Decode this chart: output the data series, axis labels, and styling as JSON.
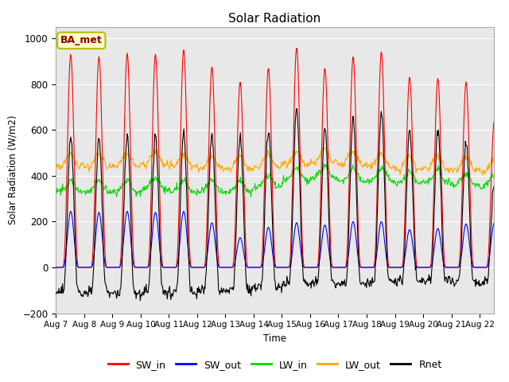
{
  "title": "Solar Radiation",
  "ylabel": "Solar Radiation (W/m2)",
  "xlabel": "Time",
  "ylim": [
    -200,
    1050
  ],
  "yticks": [
    -200,
    0,
    200,
    400,
    600,
    800,
    1000
  ],
  "n_days": 16,
  "colors": {
    "SW_in": "#ff0000",
    "SW_out": "#0000ff",
    "LW_in": "#00dd00",
    "LW_out": "#ffaa00",
    "Rnet": "#000000"
  },
  "annotation_text": "BA_met",
  "background_color": "#e8e8e8",
  "fig_background": "#ffffff",
  "grid_color": "#ffffff",
  "sw_in_peaks": [
    930,
    920,
    935,
    930,
    950,
    875,
    810,
    870,
    960,
    870,
    920,
    940,
    830,
    825,
    810,
    640
  ],
  "sw_out_peaks": [
    245,
    240,
    245,
    240,
    245,
    195,
    130,
    175,
    195,
    185,
    200,
    200,
    165,
    170,
    190,
    195
  ],
  "lw_in_base": [
    330,
    330,
    330,
    340,
    330,
    330,
    330,
    350,
    380,
    390,
    380,
    380,
    370,
    370,
    360,
    350
  ],
  "lw_out_base": [
    430,
    430,
    435,
    440,
    430,
    420,
    420,
    430,
    440,
    450,
    440,
    430,
    420,
    420,
    415,
    410
  ]
}
